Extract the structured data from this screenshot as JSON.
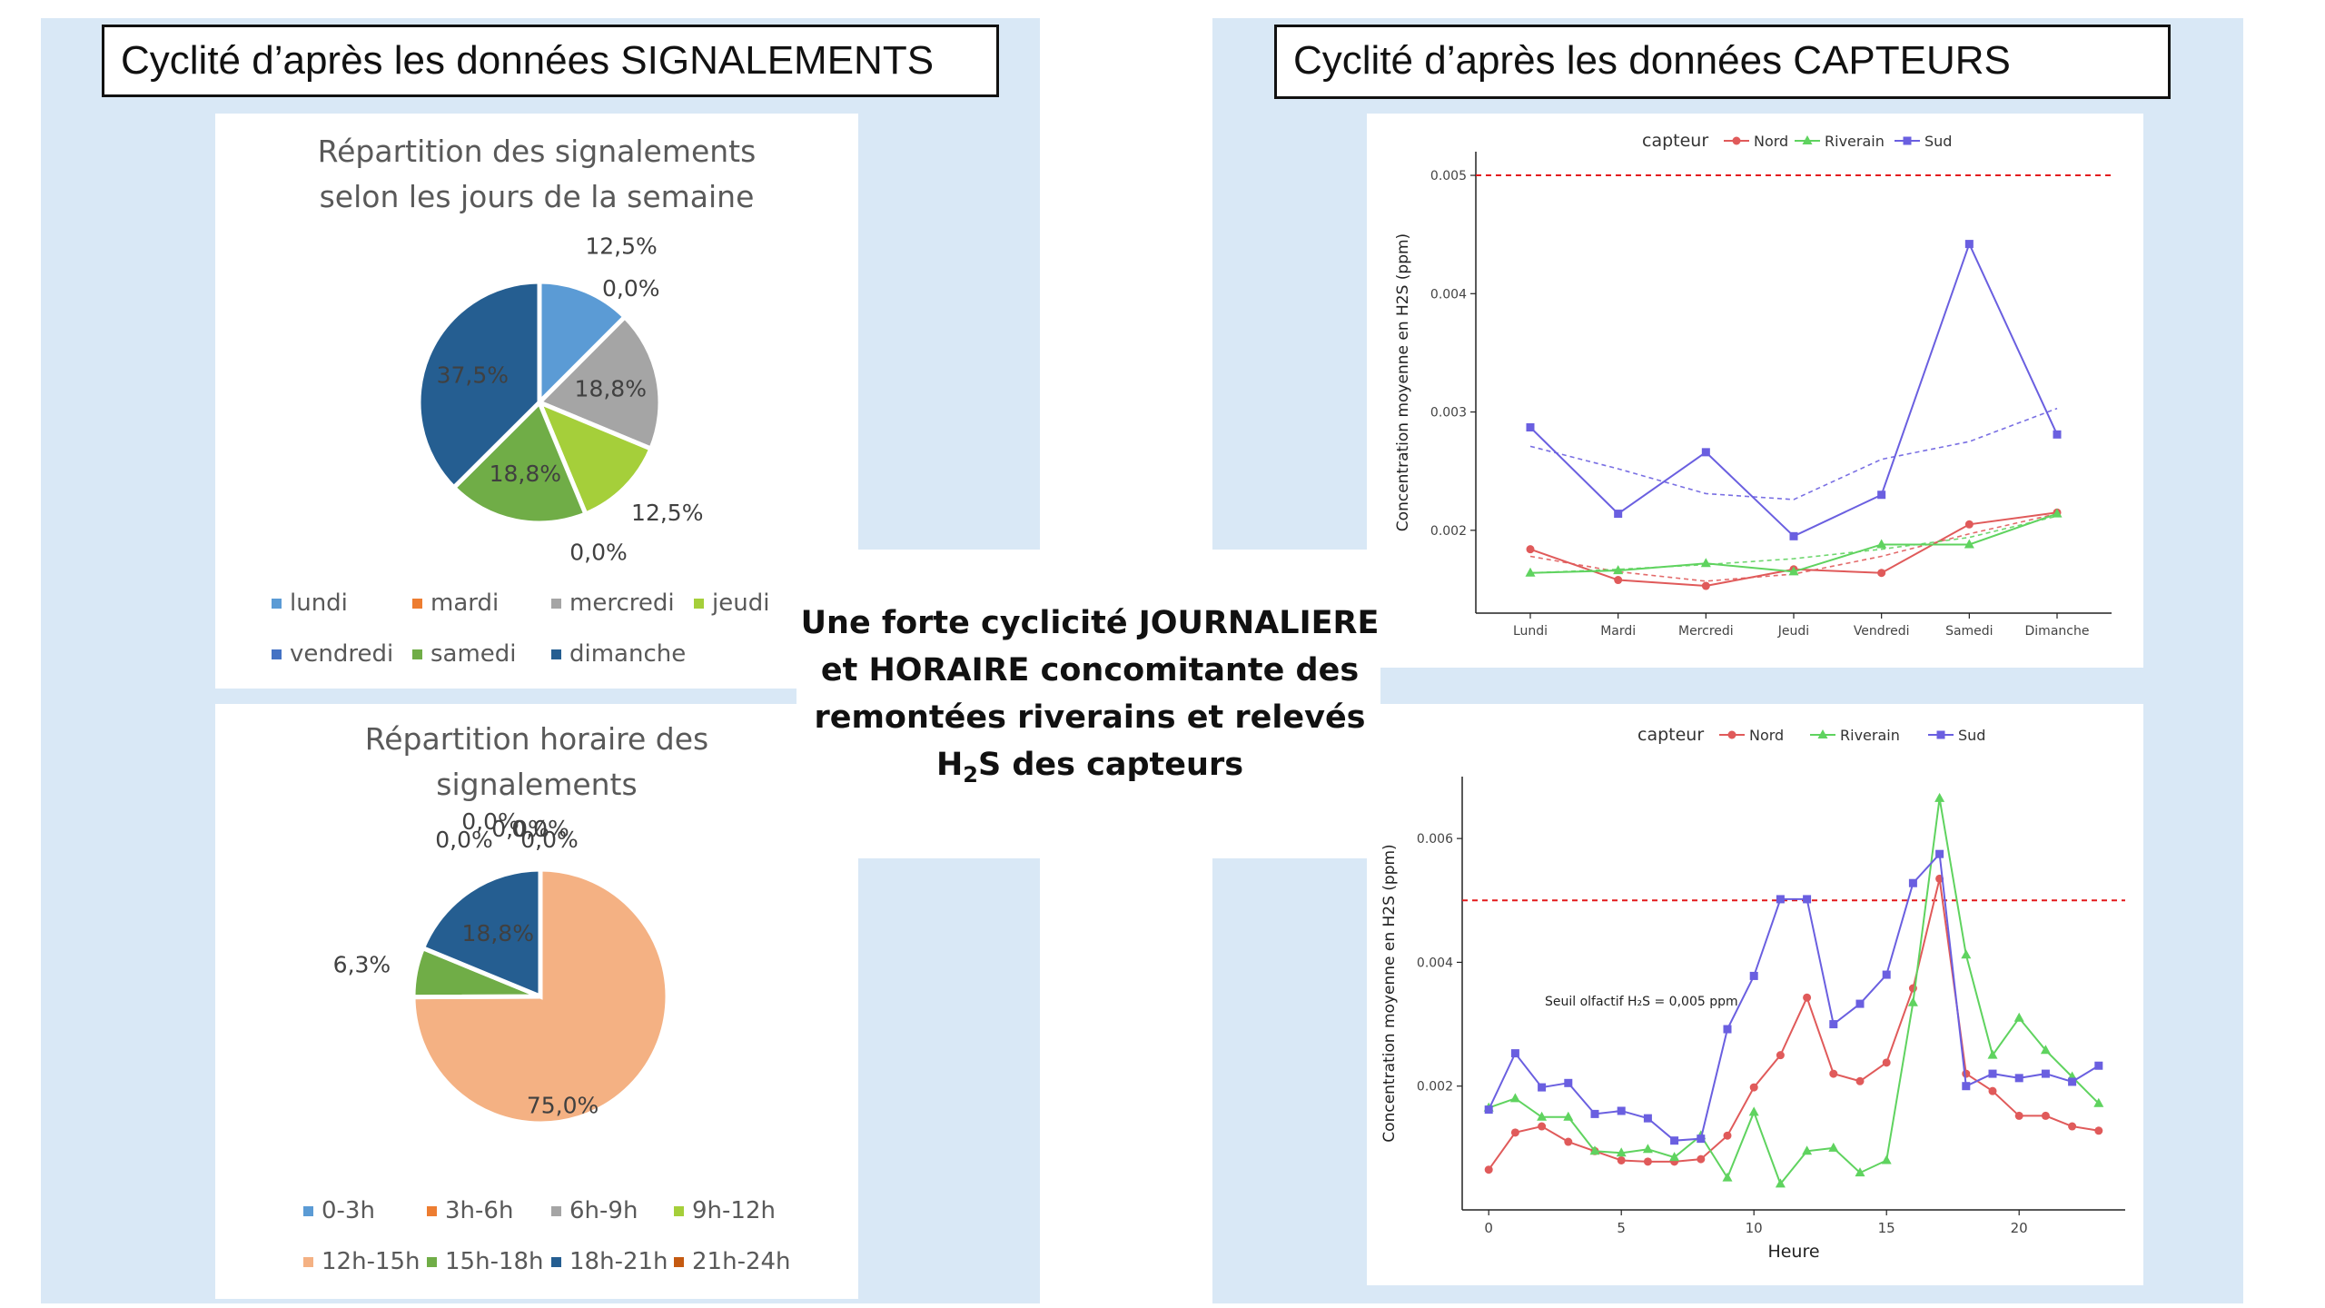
{
  "left_title": "Cyclité d’après les données SIGNALEMENTS",
  "right_title": "Cyclité d’après les données CAPTEURS",
  "center": {
    "line1_a": "Une forte cyclicité ",
    "line1_b": "JOURNALIERE",
    "line2_a": "et ",
    "line2_b": "HORAIRE",
    "line2_c": " concomitante des",
    "line3": "remontées riverains et relevés",
    "line4_a": "H",
    "line4_sub": "2",
    "line4_b": "S des capteurs"
  },
  "colors": {
    "panel_bg": "#d9e8f6",
    "threshold": "#e31a1c",
    "nord": "#e05a5a",
    "riverain": "#5fd35f",
    "sud": "#6a5fe0"
  },
  "chart_data": [
    {
      "id": "pie_days",
      "type": "pie",
      "title_lines": [
        "Répartition des signalements",
        "selon les jours de la semaine"
      ],
      "categories": [
        "lundi",
        "mardi",
        "mercredi",
        "jeudi",
        "vendredi",
        "samedi",
        "dimanche"
      ],
      "values": [
        12.5,
        0.0,
        18.8,
        12.5,
        0.0,
        18.8,
        37.5
      ],
      "labels": [
        "12,5%",
        "0,0%",
        "18,8%",
        "12,5%",
        "0,0%",
        "18,8%",
        "37,5%"
      ],
      "colors": [
        "#5b9bd5",
        "#ed7d31",
        "#a5a5a5",
        "#a5cf3a",
        "#4472c4",
        "#70ad47",
        "#255e91"
      ],
      "legend_position": "bottom"
    },
    {
      "id": "pie_hours",
      "type": "pie",
      "title_lines": [
        "Répartition horaire des",
        "signalements"
      ],
      "categories": [
        "0-3h",
        "3h-6h",
        "6h-9h",
        "9h-12h",
        "12h-15h",
        "15h-18h",
        "18h-21h",
        "21h-24h"
      ],
      "values": [
        0.0,
        0.0,
        0.0,
        0.0,
        75.0,
        6.3,
        18.8,
        0.0
      ],
      "labels": [
        "0,0%",
        "0,0%",
        "0,0%",
        "0,0%",
        "75,0%",
        "6,3%",
        "18,8%",
        "0,0%"
      ],
      "colors": [
        "#5b9bd5",
        "#ed7d31",
        "#a5a5a5",
        "#a5cf3a",
        "#f4b183",
        "#70ad47",
        "#255e91",
        "#c55a11"
      ],
      "legend_position": "bottom"
    },
    {
      "id": "line_days",
      "type": "line",
      "legend_title": "capteur",
      "ylabel": "Concentration moyenne en H2S (ppm)",
      "xlabel": "",
      "categories": [
        "Lundi",
        "Mardi",
        "Mercredi",
        "Jeudi",
        "Vendredi",
        "Samedi",
        "Dimanche"
      ],
      "ylim": [
        0.0013,
        0.0052
      ],
      "yticks": [
        0.002,
        0.003,
        0.004,
        0.005
      ],
      "ytick_labels": [
        "0.002",
        "0.003",
        "0.004",
        "0.005"
      ],
      "threshold": 0.005,
      "series": [
        {
          "name": "Nord",
          "values": [
            0.00184,
            0.00158,
            0.00153,
            0.00167,
            0.00164,
            0.00205,
            0.00215
          ],
          "trend": [
            0.00178,
            0.00165,
            0.00157,
            0.00163,
            0.00178,
            0.00197,
            0.00214
          ]
        },
        {
          "name": "Riverain",
          "values": [
            0.00164,
            0.00166,
            0.00172,
            0.00165,
            0.00188,
            0.00188,
            0.00214
          ],
          "trend": [
            0.00164,
            0.00167,
            0.00171,
            0.00176,
            0.00184,
            0.00194,
            0.00212
          ]
        },
        {
          "name": "Sud",
          "values": [
            0.00287,
            0.00214,
            0.00266,
            0.00195,
            0.0023,
            0.00442,
            0.00281
          ],
          "trend": [
            0.00271,
            0.00252,
            0.00231,
            0.00226,
            0.0026,
            0.00275,
            0.00303
          ]
        }
      ]
    },
    {
      "id": "line_hours",
      "type": "line",
      "legend_title": "capteur",
      "ylabel": "Concentration moyenne en H2S (ppm)",
      "xlabel": "Heure",
      "x": [
        0,
        1,
        2,
        3,
        4,
        5,
        6,
        7,
        8,
        9,
        10,
        11,
        12,
        13,
        14,
        15,
        16,
        17,
        18,
        19,
        20,
        21,
        22,
        23
      ],
      "xlim": [
        -1,
        24
      ],
      "xticks": [
        0,
        5,
        10,
        15,
        20
      ],
      "ylim": [
        0.0,
        0.007
      ],
      "yticks": [
        0.002,
        0.004,
        0.006
      ],
      "ytick_labels": [
        "0.002",
        "0.004",
        "0.006"
      ],
      "threshold": 0.005,
      "annotation": "Seuil olfactif H₂S = 0,005 ppm",
      "series": [
        {
          "name": "Nord",
          "values": [
            0.00065,
            0.00125,
            0.00135,
            0.0011,
            0.00095,
            0.0008,
            0.00078,
            0.00078,
            0.00082,
            0.0012,
            0.00198,
            0.0025,
            0.00343,
            0.0022,
            0.00208,
            0.00238,
            0.00358,
            0.00535,
            0.0022,
            0.00192,
            0.00152,
            0.00152,
            0.00135,
            0.00128
          ]
        },
        {
          "name": "Riverain",
          "values": [
            0.00165,
            0.0018,
            0.0015,
            0.0015,
            0.00095,
            0.00092,
            0.00098,
            0.00085,
            0.0012,
            0.00052,
            0.00158,
            0.00042,
            0.00095,
            0.001,
            0.0006,
            0.0008,
            0.00335,
            0.00665,
            0.00412,
            0.0025,
            0.0031,
            0.00258,
            0.00215,
            0.00172
          ]
        },
        {
          "name": "Sud",
          "values": [
            0.00162,
            0.00253,
            0.00198,
            0.00205,
            0.00155,
            0.0016,
            0.00148,
            0.00112,
            0.00115,
            0.00292,
            0.00378,
            0.00502,
            0.00502,
            0.003,
            0.00333,
            0.0038,
            0.00528,
            0.00575,
            0.002,
            0.0022,
            0.00213,
            0.0022,
            0.00207,
            0.00233
          ]
        }
      ]
    }
  ]
}
